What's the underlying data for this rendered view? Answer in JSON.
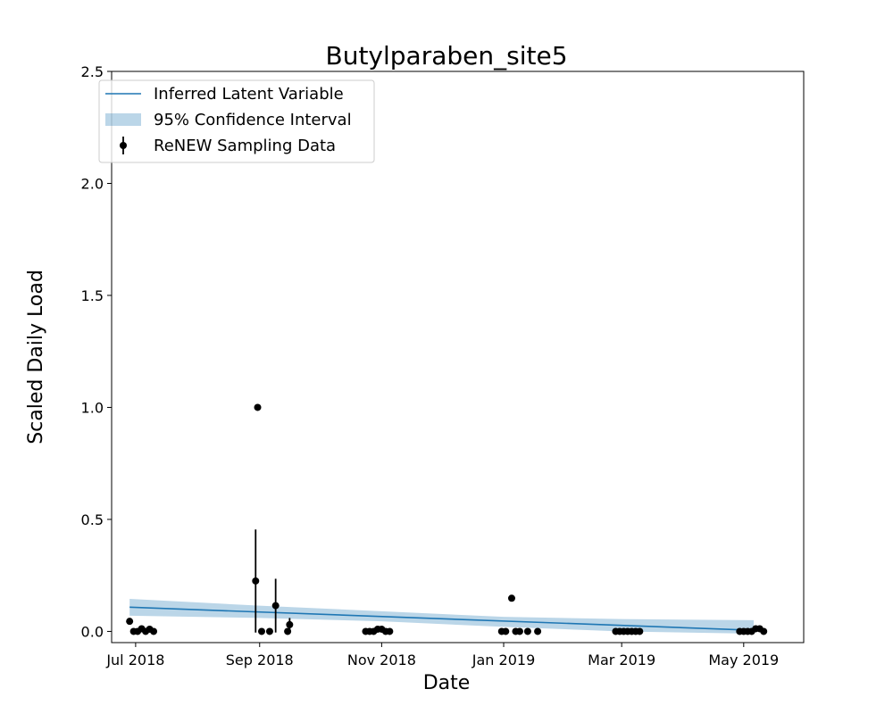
{
  "chart_data": {
    "type": "scatter",
    "title": "Butylparaben_site5",
    "xlabel": "Date",
    "ylabel": "Scaled Daily Load",
    "xlim": [
      "2018-06-19",
      "2019-05-31"
    ],
    "ylim": [
      -0.05,
      2.5
    ],
    "x_ticks": [
      {
        "date": "2018-07-01",
        "label": "Jul 2018"
      },
      {
        "date": "2018-09-01",
        "label": "Sep 2018"
      },
      {
        "date": "2018-11-01",
        "label": "Nov 2018"
      },
      {
        "date": "2019-01-01",
        "label": "Jan 2019"
      },
      {
        "date": "2019-03-01",
        "label": "Mar 2019"
      },
      {
        "date": "2019-05-01",
        "label": "May 2019"
      }
    ],
    "y_ticks": [
      {
        "value": 0.0,
        "label": "0.0"
      },
      {
        "value": 0.5,
        "label": "0.5"
      },
      {
        "value": 1.0,
        "label": "1.0"
      },
      {
        "value": 1.5,
        "label": "1.5"
      },
      {
        "value": 2.0,
        "label": "2.0"
      },
      {
        "value": 2.5,
        "label": "2.5"
      }
    ],
    "grid": false,
    "legend_position": "top-left",
    "legend": [
      {
        "label": "Inferred Latent Variable",
        "kind": "line"
      },
      {
        "label": "95% Confidence Interval",
        "kind": "band"
      },
      {
        "label": "ReNEW Sampling Data",
        "kind": "errorbar-point"
      }
    ],
    "colors": {
      "line": "#1f77b4",
      "band": "#1f77b4",
      "points": "#000000"
    },
    "series": [
      {
        "name": "Inferred Latent Variable",
        "kind": "line",
        "x": [
          "2018-06-28",
          "2019-05-06"
        ],
        "y": [
          0.108,
          0.005
        ]
      },
      {
        "name": "95% Confidence Interval",
        "kind": "band",
        "x": [
          "2018-06-28",
          "2018-09-01",
          "2018-11-01",
          "2019-01-01",
          "2019-03-01",
          "2019-05-06"
        ],
        "lower": [
          0.07,
          0.06,
          0.045,
          0.02,
          0.0,
          -0.01
        ],
        "upper": [
          0.145,
          0.115,
          0.09,
          0.065,
          0.055,
          0.05
        ]
      },
      {
        "name": "ReNEW Sampling Data",
        "kind": "errorbar",
        "points": [
          {
            "x": "2018-06-28",
            "y": 0.045
          },
          {
            "x": "2018-06-30",
            "y": 0.0
          },
          {
            "x": "2018-07-02",
            "y": 0.0
          },
          {
            "x": "2018-07-04",
            "y": 0.012
          },
          {
            "x": "2018-07-06",
            "y": 0.0
          },
          {
            "x": "2018-07-08",
            "y": 0.01
          },
          {
            "x": "2018-07-10",
            "y": 0.0
          },
          {
            "x": "2018-08-30",
            "y": 0.225,
            "yerr": 0.23
          },
          {
            "x": "2018-08-31",
            "y": 1.0
          },
          {
            "x": "2018-09-02",
            "y": 0.0
          },
          {
            "x": "2018-09-06",
            "y": 0.0
          },
          {
            "x": "2018-09-09",
            "y": 0.115,
            "yerr": 0.12
          },
          {
            "x": "2018-09-15",
            "y": 0.0
          },
          {
            "x": "2018-09-16",
            "y": 0.03,
            "yerr": 0.03
          },
          {
            "x": "2018-10-24",
            "y": 0.0
          },
          {
            "x": "2018-10-26",
            "y": 0.0
          },
          {
            "x": "2018-10-28",
            "y": 0.0
          },
          {
            "x": "2018-10-30",
            "y": 0.01
          },
          {
            "x": "2018-11-01",
            "y": 0.01
          },
          {
            "x": "2018-11-03",
            "y": 0.0
          },
          {
            "x": "2018-11-05",
            "y": 0.0
          },
          {
            "x": "2018-12-31",
            "y": 0.0
          },
          {
            "x": "2019-01-02",
            "y": 0.0
          },
          {
            "x": "2019-01-05",
            "y": 0.148
          },
          {
            "x": "2019-01-07",
            "y": 0.0
          },
          {
            "x": "2019-01-09",
            "y": 0.0
          },
          {
            "x": "2019-01-13",
            "y": 0.0
          },
          {
            "x": "2019-01-18",
            "y": 0.0
          },
          {
            "x": "2019-02-26",
            "y": 0.0
          },
          {
            "x": "2019-02-28",
            "y": 0.0
          },
          {
            "x": "2019-03-02",
            "y": 0.0
          },
          {
            "x": "2019-03-04",
            "y": 0.0
          },
          {
            "x": "2019-03-06",
            "y": 0.0
          },
          {
            "x": "2019-03-08",
            "y": 0.0
          },
          {
            "x": "2019-03-10",
            "y": 0.0
          },
          {
            "x": "2019-04-29",
            "y": 0.0
          },
          {
            "x": "2019-05-01",
            "y": 0.0
          },
          {
            "x": "2019-05-03",
            "y": 0.0
          },
          {
            "x": "2019-05-05",
            "y": 0.0
          },
          {
            "x": "2019-05-07",
            "y": 0.012
          },
          {
            "x": "2019-05-09",
            "y": 0.012
          },
          {
            "x": "2019-05-11",
            "y": 0.0
          }
        ]
      }
    ]
  }
}
